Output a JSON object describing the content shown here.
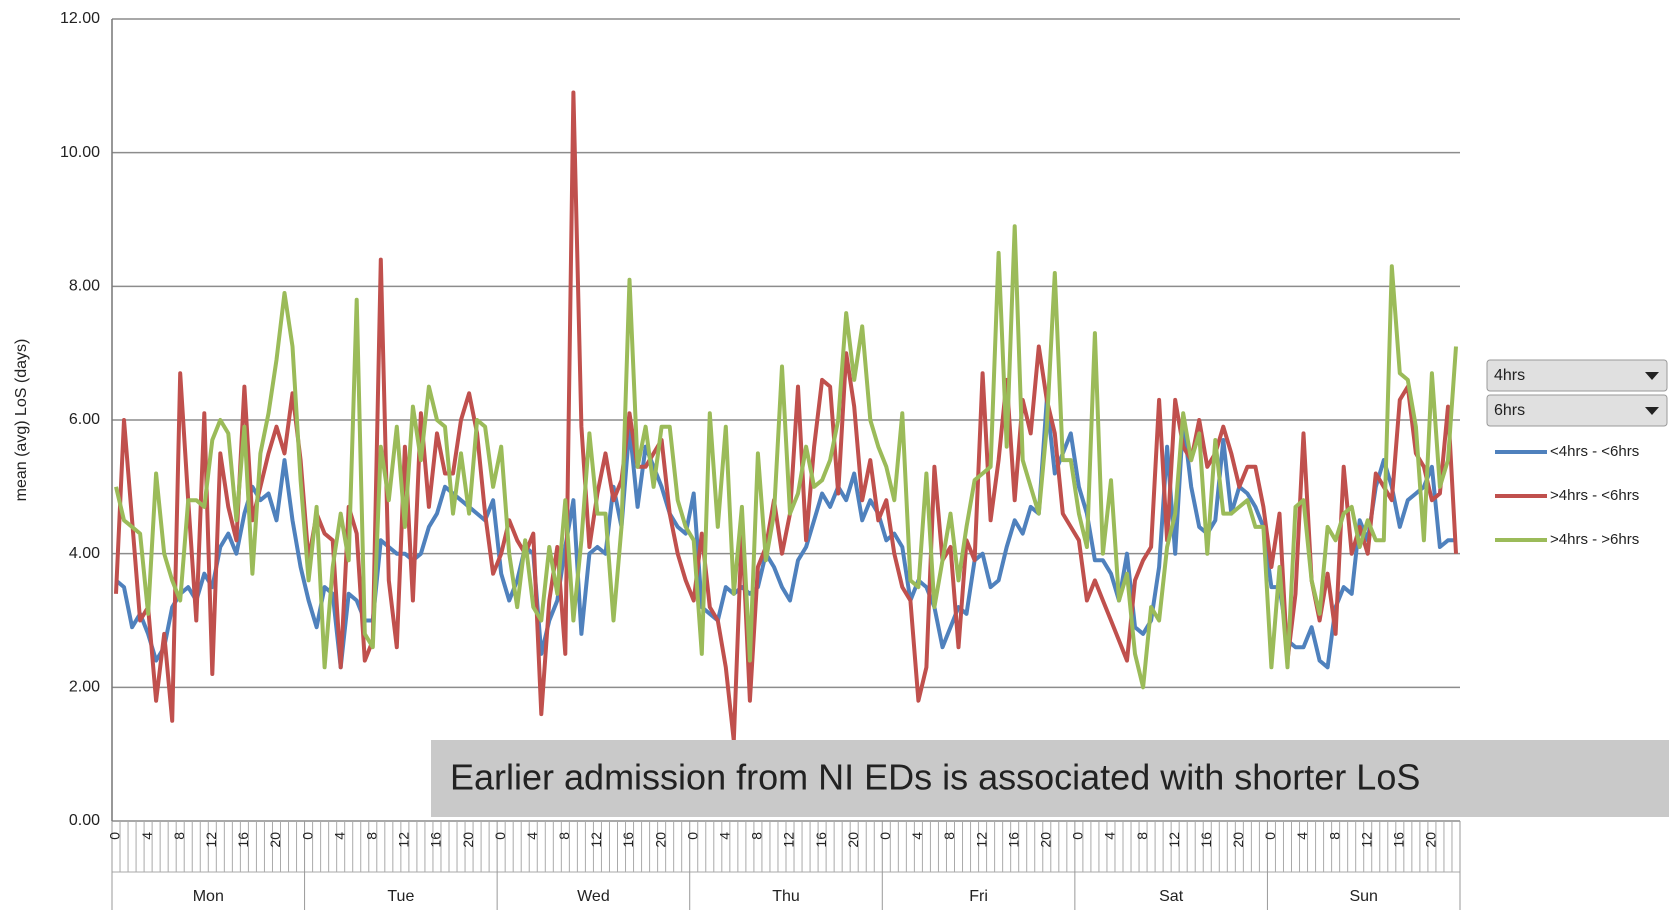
{
  "chart_data": {
    "type": "line",
    "y_axis_label": "mean (avg)  LoS (days)",
    "ylim": [
      0,
      12
    ],
    "yticks": [
      {
        "value": 0,
        "label": "0.00"
      },
      {
        "value": 2,
        "label": "2.00"
      },
      {
        "value": 4,
        "label": "4.00"
      },
      {
        "value": 6,
        "label": "6.00"
      },
      {
        "value": 8,
        "label": "8.00"
      },
      {
        "value": 10,
        "label": "10.00"
      },
      {
        "value": 12,
        "label": "12.00"
      }
    ],
    "grid": true,
    "day_groups": [
      "Mon",
      "Tue",
      "Wed",
      "Thu",
      "Fri",
      "Sat",
      "Sun"
    ],
    "categories": [
      "0",
      null,
      null,
      null,
      "4",
      null,
      null,
      null,
      "8",
      null,
      null,
      null,
      "12",
      null,
      null,
      null,
      "16",
      null,
      null,
      null,
      "20",
      null,
      null,
      null,
      "0",
      null,
      null,
      null,
      "4",
      null,
      null,
      null,
      "8",
      null,
      null,
      null,
      "12",
      null,
      null,
      null,
      "16",
      null,
      null,
      null,
      "20",
      null,
      null,
      null,
      "0",
      null,
      null,
      null,
      "4",
      null,
      null,
      null,
      "8",
      null,
      null,
      null,
      "12",
      null,
      null,
      null,
      "16",
      null,
      null,
      null,
      "20",
      null,
      null,
      null,
      "0",
      null,
      null,
      null,
      "4",
      null,
      null,
      null,
      "8",
      null,
      null,
      null,
      "12",
      null,
      null,
      null,
      "16",
      null,
      null,
      null,
      "20",
      null,
      null,
      null,
      "0",
      null,
      null,
      null,
      "4",
      null,
      null,
      null,
      "8",
      null,
      null,
      null,
      "12",
      null,
      null,
      null,
      "16",
      null,
      null,
      null,
      "20",
      null,
      null,
      null,
      "0",
      null,
      null,
      null,
      "4",
      null,
      null,
      null,
      "8",
      null,
      null,
      null,
      "12",
      null,
      null,
      null,
      "16",
      null,
      null,
      null,
      "20",
      null,
      null,
      null,
      "0",
      null,
      null,
      null,
      "4",
      null,
      null,
      null,
      "8",
      null,
      null,
      null,
      "12",
      null,
      null,
      null,
      "16",
      null,
      null,
      null,
      "20",
      null,
      null,
      null
    ],
    "series": [
      {
        "name": "<4hrs - <6hrs",
        "color": "#4f81bd",
        "values": [
          3.6,
          3.5,
          2.9,
          3.1,
          2.8,
          2.4,
          2.6,
          3.2,
          3.4,
          3.5,
          3.3,
          3.7,
          3.5,
          4.1,
          4.3,
          4.0,
          4.6,
          5.0,
          4.8,
          4.9,
          4.5,
          5.4,
          4.5,
          3.8,
          3.3,
          2.9,
          3.5,
          3.4,
          2.3,
          3.4,
          3.3,
          3.0,
          3.0,
          4.2,
          4.1,
          4.0,
          4.0,
          3.9,
          4.0,
          4.4,
          4.6,
          5.0,
          4.9,
          4.8,
          4.7,
          4.6,
          4.5,
          4.8,
          3.7,
          3.3,
          3.6,
          4.1,
          4.0,
          2.5,
          3.0,
          3.3,
          4.1,
          4.8,
          2.8,
          4.0,
          4.1,
          4.0,
          5.0,
          4.4,
          5.9,
          4.7,
          5.6,
          5.3,
          5.0,
          4.6,
          4.4,
          4.3,
          4.9,
          3.2,
          3.1,
          3.0,
          3.5,
          3.4,
          3.5,
          3.4,
          3.5,
          4.0,
          3.8,
          3.5,
          3.3,
          3.9,
          4.1,
          4.5,
          4.9,
          4.7,
          5.0,
          4.8,
          5.2,
          4.5,
          4.8,
          4.6,
          4.2,
          4.3,
          4.1,
          3.3,
          3.6,
          3.5,
          3.2,
          2.6,
          2.9,
          3.2,
          3.1,
          3.9,
          4.0,
          3.5,
          3.6,
          4.1,
          4.5,
          4.3,
          4.7,
          4.6,
          6.3,
          5.2,
          5.5,
          5.8,
          5.0,
          4.6,
          3.9,
          3.9,
          3.7,
          3.3,
          4.0,
          2.9,
          2.8,
          3.0,
          3.8,
          5.6,
          4.0,
          6.0,
          5.0,
          4.4,
          4.3,
          4.5,
          5.7,
          4.6,
          5.0,
          4.9,
          4.7,
          4.4,
          3.5,
          3.5,
          2.7,
          2.6,
          2.6,
          2.9,
          2.4,
          2.3,
          3.2,
          3.5,
          3.4,
          4.5,
          4.2,
          5.0,
          5.4,
          5.0,
          4.4,
          4.8,
          4.9,
          5.0,
          5.3,
          4.1,
          4.2,
          4.2
        ]
      },
      {
        "name": ">4hrs - <6hrs",
        "color": "#c0504d",
        "values": [
          3.4,
          6.0,
          4.5,
          3.0,
          3.2,
          1.8,
          2.8,
          1.5,
          6.7,
          4.8,
          3.0,
          6.1,
          2.2,
          5.5,
          4.7,
          4.2,
          6.5,
          4.5,
          5.0,
          5.5,
          5.9,
          5.5,
          6.4,
          5.4,
          3.9,
          4.6,
          4.3,
          4.2,
          2.3,
          4.7,
          4.3,
          2.4,
          2.7,
          8.4,
          3.6,
          2.6,
          5.6,
          3.3,
          6.1,
          4.7,
          5.8,
          5.2,
          5.2,
          6.0,
          6.4,
          5.8,
          4.6,
          3.7,
          4.0,
          4.5,
          4.2,
          4.0,
          4.3,
          1.6,
          3.3,
          4.1,
          2.5,
          10.9,
          5.9,
          4.1,
          4.9,
          5.5,
          4.8,
          5.1,
          6.1,
          5.3,
          5.3,
          5.5,
          5.7,
          4.6,
          4.0,
          3.6,
          3.3,
          4.3,
          3.2,
          3.0,
          2.3,
          1.2,
          4.4,
          1.8,
          3.8,
          4.1,
          4.8,
          4.0,
          4.6,
          6.5,
          4.2,
          5.6,
          6.6,
          6.5,
          4.9,
          7.0,
          6.2,
          4.8,
          5.4,
          4.5,
          4.8,
          4.0,
          3.5,
          3.3,
          1.8,
          2.3,
          5.3,
          3.9,
          4.1,
          2.6,
          4.2,
          3.9,
          6.7,
          4.5,
          5.4,
          6.6,
          4.8,
          6.3,
          5.8,
          7.1,
          6.3,
          5.8,
          4.6,
          4.4,
          4.2,
          3.3,
          3.6,
          3.3,
          3.0,
          2.7,
          2.4,
          3.6,
          3.9,
          4.1,
          6.3,
          4.2,
          6.3,
          5.6,
          5.4,
          6.0,
          5.3,
          5.5,
          5.9,
          5.5,
          5.0,
          5.3,
          5.3,
          4.7,
          3.8,
          4.6,
          2.4,
          3.4,
          5.8,
          3.6,
          3.0,
          3.7,
          2.8,
          5.3,
          4.0,
          4.4,
          4.0,
          5.2,
          5.0,
          4.8,
          6.3,
          6.5,
          5.5,
          5.3,
          4.8,
          4.9,
          6.2,
          4.0
        ]
      },
      {
        "name": ">4hrs - >6hrs",
        "color": "#9bbb59",
        "values": [
          5.0,
          4.5,
          4.4,
          4.3,
          3.1,
          5.2,
          4.0,
          3.6,
          3.3,
          4.8,
          4.8,
          4.7,
          5.7,
          6.0,
          5.8,
          4.5,
          5.9,
          3.7,
          5.5,
          6.1,
          6.9,
          7.9,
          7.1,
          5.1,
          3.6,
          4.7,
          2.3,
          3.8,
          4.6,
          3.9,
          7.8,
          2.8,
          2.6,
          5.6,
          4.8,
          5.9,
          4.4,
          6.2,
          5.4,
          6.5,
          6.0,
          5.9,
          4.6,
          5.5,
          4.6,
          6.0,
          5.9,
          5.0,
          5.6,
          4.0,
          3.2,
          4.2,
          3.2,
          3.0,
          4.1,
          3.4,
          4.8,
          3.0,
          4.2,
          5.8,
          4.6,
          4.6,
          3.0,
          4.4,
          8.1,
          5.3,
          5.9,
          5.0,
          5.9,
          5.9,
          4.8,
          4.4,
          4.2,
          2.5,
          6.1,
          4.4,
          5.9,
          3.4,
          4.7,
          2.4,
          5.5,
          3.9,
          4.6,
          6.8,
          4.6,
          4.9,
          5.6,
          5.0,
          5.1,
          5.4,
          6.0,
          7.6,
          6.6,
          7.4,
          6.0,
          5.6,
          5.3,
          4.8,
          6.1,
          3.6,
          3.5,
          5.2,
          3.2,
          3.9,
          4.6,
          3.6,
          4.4,
          5.1,
          5.2,
          5.3,
          8.5,
          5.6,
          8.9,
          5.4,
          5.0,
          4.6,
          5.9,
          8.2,
          5.4,
          5.4,
          4.6,
          4.1,
          7.3,
          4.0,
          5.1,
          3.3,
          3.7,
          2.5,
          2.0,
          3.2,
          3.0,
          4.1,
          4.6,
          6.1,
          5.4,
          5.8,
          4.0,
          5.7,
          4.6,
          4.6,
          4.7,
          4.8,
          4.4,
          4.4,
          2.3,
          3.8,
          2.3,
          4.7,
          4.8,
          3.6,
          3.1,
          4.4,
          4.2,
          4.6,
          4.7,
          4.1,
          4.5,
          4.2,
          4.2,
          8.3,
          6.7,
          6.6,
          5.9,
          4.2,
          6.7,
          5.0,
          5.4,
          7.1
        ]
      }
    ],
    "filters": [
      "4hrs",
      "6hrs"
    ],
    "annotation": "Earlier admission from NI EDs is associated with shorter LoS"
  }
}
